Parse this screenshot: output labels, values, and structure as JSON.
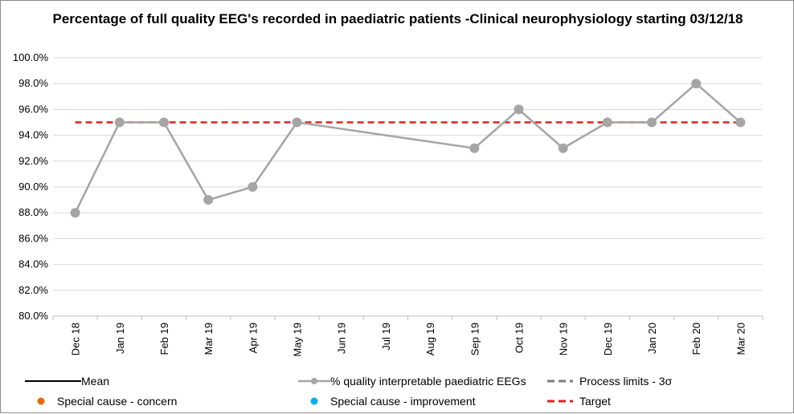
{
  "chart_data": {
    "type": "line",
    "title": "Percentage of full quality EEG's recorded in paediatric patients -Clinical neurophysiology starting 03/12/18",
    "categories": [
      "Dec 18",
      "Jan 19",
      "Feb 19",
      "Mar 19",
      "Apr 19",
      "May 19",
      "Jun 19",
      "Jul 19",
      "Aug 19",
      "Sep 19",
      "Oct 19",
      "Nov 19",
      "Dec 19",
      "Jan 20",
      "Feb 20",
      "Mar 20"
    ],
    "ylim": [
      80,
      100
    ],
    "yticks": [
      "80.0%",
      "82.0%",
      "84.0%",
      "86.0%",
      "88.0%",
      "90.0%",
      "92.0%",
      "94.0%",
      "96.0%",
      "98.0%",
      "100.0%"
    ],
    "grid": true,
    "series": [
      {
        "name": "% quality interpretable paediatric EEGs",
        "values": [
          88,
          95,
          95,
          89,
          90,
          95,
          null,
          null,
          null,
          93,
          96,
          93,
          95,
          95,
          98,
          95
        ],
        "color": "#a5a5a5"
      },
      {
        "name": "Target",
        "values": [
          95,
          95,
          95,
          95,
          95,
          95,
          95,
          95,
          95,
          95,
          95,
          95,
          95,
          95,
          95,
          95
        ],
        "color": "#e02020"
      }
    ],
    "legend": {
      "position": "bottom",
      "items": [
        {
          "label": "Mean",
          "style": "solid-line",
          "color": "#000000"
        },
        {
          "label": "% quality interpretable paediatric EEGs",
          "style": "line-marker",
          "color": "#a5a5a5"
        },
        {
          "label": "Process limits - 3σ",
          "style": "dashed-line",
          "color": "#7f7f7f"
        },
        {
          "label": "Special cause - concern",
          "style": "dot",
          "color": "#e36c09"
        },
        {
          "label": "Special cause  - improvement",
          "style": "dot",
          "color": "#00b0f0"
        },
        {
          "label": "Target",
          "style": "dashed-line",
          "color": "#e02020"
        }
      ]
    }
  }
}
